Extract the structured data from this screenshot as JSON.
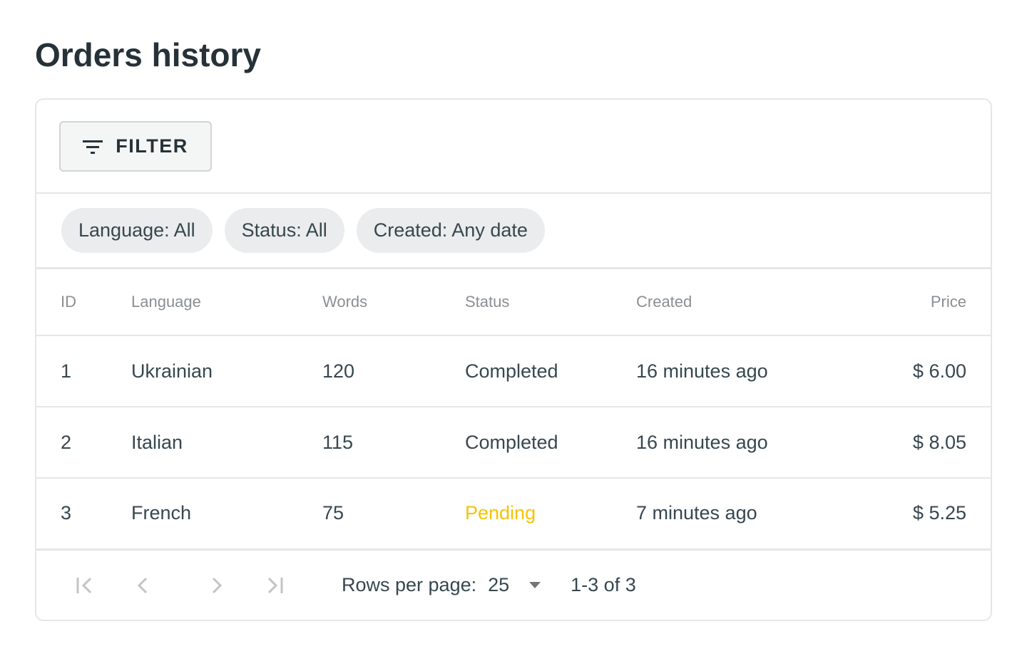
{
  "page": {
    "title": "Orders history"
  },
  "toolbar": {
    "filter_label": "FILTER",
    "filter_icon": "filter-list-icon"
  },
  "chips": [
    {
      "label": "Language: All"
    },
    {
      "label": "Status: All"
    },
    {
      "label": "Created: Any date"
    }
  ],
  "table": {
    "columns": [
      "ID",
      "Language",
      "Words",
      "Status",
      "Created",
      "Price"
    ],
    "rows": [
      {
        "id": "1",
        "language": "Ukrainian",
        "words": "120",
        "status": "Completed",
        "created": "16 minutes ago",
        "price": "$ 6.00"
      },
      {
        "id": "2",
        "language": "Italian",
        "words": "115",
        "status": "Completed",
        "created": "16 minutes ago",
        "price": "$ 8.05"
      },
      {
        "id": "3",
        "language": "French",
        "words": "75",
        "status": "Pending",
        "created": "7 minutes ago",
        "price": "$ 5.25"
      }
    ]
  },
  "colors": {
    "pending": "#f5c400"
  },
  "pagination": {
    "rows_per_page_label": "Rows per page:",
    "rows_per_page": "25",
    "range": "1-3 of 3"
  }
}
